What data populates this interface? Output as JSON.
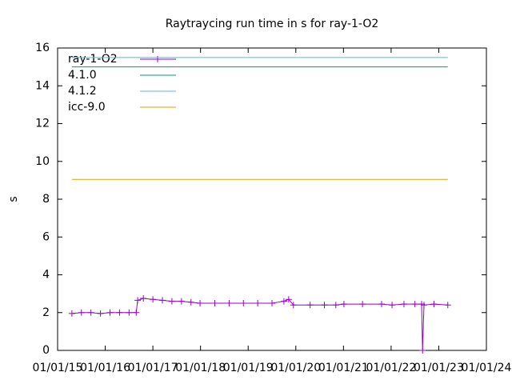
{
  "chart_data": {
    "type": "line",
    "title": "Raytraycing run time in s for ray-1-O2",
    "y_label": "s",
    "xlim": [
      2015,
      2024
    ],
    "xticks": [
      {
        "value": 2015,
        "label": "01/01/15"
      },
      {
        "value": 2016,
        "label": "01/01/16"
      },
      {
        "value": 2017,
        "label": "01/01/17"
      },
      {
        "value": 2018,
        "label": "01/01/18"
      },
      {
        "value": 2019,
        "label": "01/01/19"
      },
      {
        "value": 2020,
        "label": "01/01/20"
      },
      {
        "value": 2021,
        "label": "01/01/21"
      },
      {
        "value": 2022,
        "label": "01/01/22"
      },
      {
        "value": 2023,
        "label": "01/01/23"
      },
      {
        "value": 2024,
        "label": "01/01/24"
      }
    ],
    "ylim": [
      0,
      16
    ],
    "yticks": [
      0,
      2,
      4,
      6,
      8,
      10,
      12,
      14,
      16
    ],
    "legend": "top-left",
    "series": [
      {
        "name": "ray-1-O2",
        "color": "#9400d3",
        "marker": "+",
        "x": [
          2015.3,
          2015.5,
          2015.7,
          2015.9,
          2016.1,
          2016.3,
          2016.5,
          2016.65,
          2016.68,
          2016.8,
          2017.0,
          2017.2,
          2017.4,
          2017.6,
          2017.8,
          2017.99,
          2018.3,
          2018.6,
          2018.9,
          2019.2,
          2019.5,
          2019.75,
          2019.85,
          2019.95,
          2020.3,
          2020.6,
          2020.84,
          2021.01,
          2021.4,
          2021.8,
          2022.02,
          2022.27,
          2022.5,
          2022.64,
          2022.66,
          2022.69,
          2022.9,
          2023.19
        ],
        "values": [
          1.95,
          2.0,
          2.0,
          1.95,
          2.0,
          2.0,
          2.0,
          2.0,
          2.65,
          2.75,
          2.7,
          2.65,
          2.6,
          2.6,
          2.55,
          2.5,
          2.5,
          2.5,
          2.5,
          2.5,
          2.5,
          2.6,
          2.7,
          2.4,
          2.4,
          2.4,
          2.4,
          2.45,
          2.45,
          2.45,
          2.4,
          2.45,
          2.45,
          2.45,
          0,
          2.4,
          2.45,
          2.4
        ]
      },
      {
        "name": "4.1.0",
        "color": "#009e73",
        "x": [
          2015.3,
          2023.19
        ],
        "values": [
          15.0,
          15.0
        ]
      },
      {
        "name": "4.1.2",
        "color": "#56b4e9",
        "x": [
          2015.3,
          2023.19
        ],
        "values": [
          15.5,
          15.5
        ]
      },
      {
        "name": "icc-9.0",
        "color": "#e69f00",
        "x": [
          2015.3,
          2023.19
        ],
        "values": [
          9.05,
          9.05
        ]
      }
    ]
  }
}
